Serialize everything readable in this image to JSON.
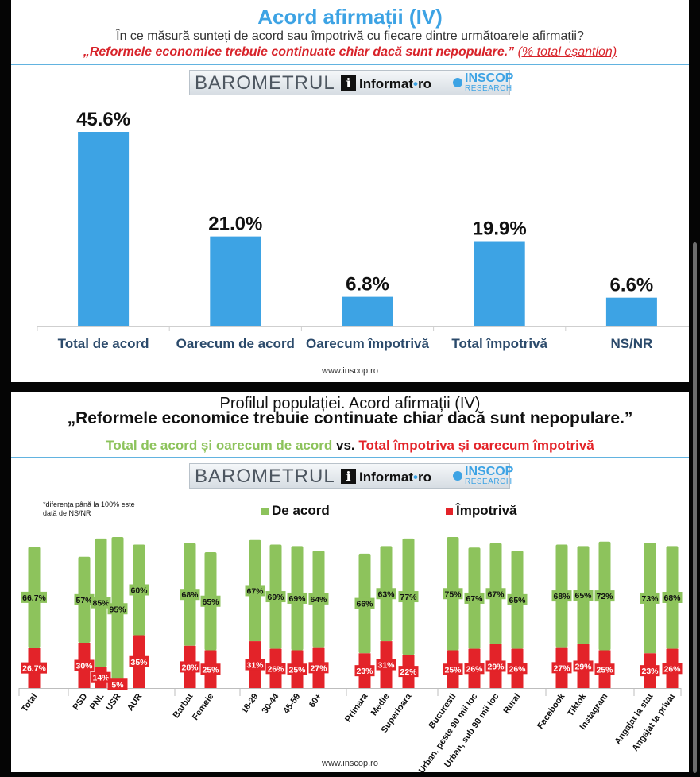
{
  "panel1": {
    "title": "Acord afirmații (IV)",
    "subtitle": "În ce măsură sunteți de acord sau împotrivă cu fiecare dintre următoarele afirmații?",
    "quote": "„Reformele economice trebuie continuate chiar dacă sunt nepopulare.”",
    "quote_note": "(% total eșantion)",
    "footer": "www.inscop.ro"
  },
  "panel2": {
    "title": "Profilul populației. Acord afirmații (IV)",
    "quote": "„Reformele economice trebuie continuate chiar dacă sunt nepopulare.”",
    "vs_green": "Total de acord și oarecum de acord",
    "vs_word": "vs.",
    "vs_red": "Total împotriva și oarecum împotrivă",
    "note": "*diferența până la 100% este dată de NS/NR",
    "footer": "www.inscop.ro"
  },
  "logo": {
    "barometrul": "BAROMETRUL",
    "i_letter": "i",
    "informat": "Informat",
    "informat_ro": "ro",
    "inscop": "INSCOP",
    "research": "RESEARCH"
  },
  "colors": {
    "blue": "#3da3e4",
    "green": "#8dc35c",
    "red": "#e32329",
    "label_dark": "#2b4a6b"
  },
  "chart_data": [
    {
      "type": "bar",
      "categories": [
        "Total de acord",
        "Oarecum de acord",
        "Oarecum împotrivă",
        "Total împotrivă",
        "NS/NR"
      ],
      "values": [
        45.6,
        21.0,
        6.8,
        19.9,
        6.6
      ],
      "labels": [
        "45.6%",
        "21.0%",
        "6.8%",
        "19.9%",
        "6.6%"
      ],
      "ylim": [
        0,
        50
      ],
      "grid": false
    },
    {
      "type": "bar",
      "stacked": true,
      "legend_position": "top",
      "series_names": [
        "De acord",
        "Împotrivă"
      ],
      "groups": [
        {
          "categories": [
            "Total"
          ],
          "agree": [
            66.7
          ],
          "against": [
            26.7
          ],
          "agree_labels": [
            "66.7%"
          ],
          "against_labels": [
            "26.7%"
          ]
        },
        {
          "categories": [
            "PSD",
            "PNL",
            "USR",
            "AUR"
          ],
          "agree": [
            57,
            85,
            95,
            60
          ],
          "against": [
            30,
            14,
            5,
            35
          ],
          "agree_labels": [
            "57%",
            "85%",
            "95%",
            "60%"
          ],
          "against_labels": [
            "30%",
            "14%",
            "5%",
            "35%"
          ]
        },
        {
          "categories": [
            "Barbat",
            "Femeie"
          ],
          "agree": [
            68,
            65
          ],
          "against": [
            28,
            25
          ],
          "agree_labels": [
            "68%",
            "65%"
          ],
          "against_labels": [
            "28%",
            "25%"
          ]
        },
        {
          "categories": [
            "18-29",
            "30-44",
            "45-59",
            "60+"
          ],
          "agree": [
            67,
            69,
            69,
            64
          ],
          "against": [
            31,
            26,
            25,
            27
          ],
          "agree_labels": [
            "67%",
            "69%",
            "69%",
            "64%"
          ],
          "against_labels": [
            "31%",
            "26%",
            "25%",
            "27%"
          ]
        },
        {
          "categories": [
            "Primara",
            "Medie",
            "Superioara"
          ],
          "agree": [
            66,
            63,
            77
          ],
          "against": [
            23,
            31,
            22
          ],
          "agree_labels": [
            "66%",
            "63%",
            "77%"
          ],
          "against_labels": [
            "23%",
            "31%",
            "22%"
          ]
        },
        {
          "categories": [
            "Bucuresti",
            "Urban, peste 90 mii loc",
            "Urban, sub 90 mii loc",
            "Rural"
          ],
          "agree": [
            75,
            67,
            67,
            65
          ],
          "against": [
            25,
            26,
            29,
            26
          ],
          "agree_labels": [
            "75%",
            "67%",
            "67%",
            "65%"
          ],
          "against_labels": [
            "25%",
            "26%",
            "29%",
            "26%"
          ]
        },
        {
          "categories": [
            "Facebook",
            "Tiktok",
            "Instagram"
          ],
          "agree": [
            68,
            65,
            72
          ],
          "against": [
            27,
            29,
            25
          ],
          "agree_labels": [
            "68%",
            "65%",
            "72%"
          ],
          "against_labels": [
            "27%",
            "29%",
            "25%"
          ]
        },
        {
          "categories": [
            "Angajat la stat",
            "Angajat la privat"
          ],
          "agree": [
            73,
            68
          ],
          "against": [
            23,
            26
          ],
          "agree_labels": [
            "73%",
            "68%"
          ],
          "against_labels": [
            "23%",
            "26%"
          ]
        }
      ]
    }
  ]
}
